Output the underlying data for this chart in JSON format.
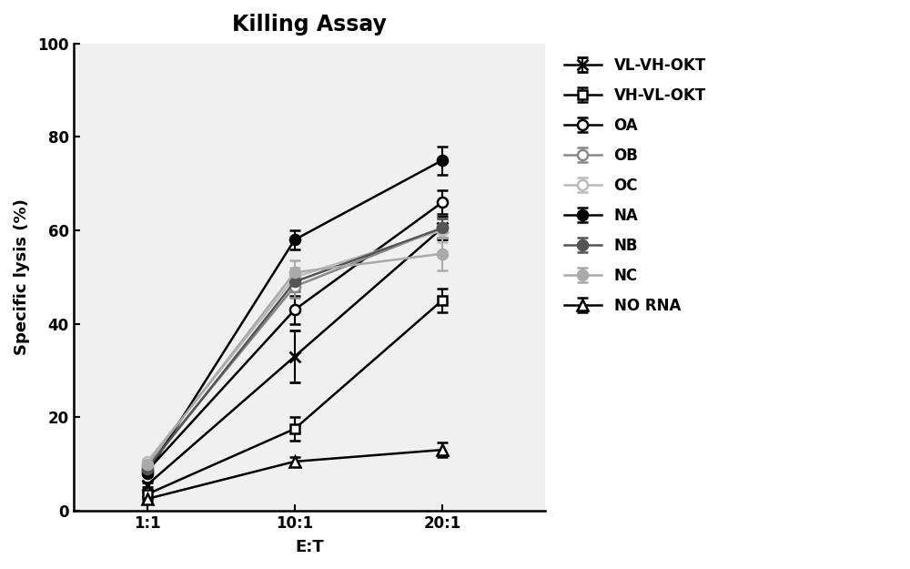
{
  "title": "Killing Assay",
  "xlabel": "E:T",
  "ylabel": "Specific lysis (%)",
  "xtick_labels": [
    "1:1",
    "10:1",
    "20:1"
  ],
  "xvals": [
    1,
    2,
    3
  ],
  "ylim": [
    0,
    100
  ],
  "yticks": [
    0,
    20,
    40,
    60,
    80,
    100
  ],
  "series": [
    {
      "label": "VL-VH-OKT",
      "color": "#000000",
      "marker": "x",
      "markersize": 9,
      "linewidth": 1.8,
      "markerfacecolor": "#000000",
      "markeredgewidth": 2.0,
      "values": [
        5.5,
        33.0,
        60.5
      ],
      "errors": [
        0.5,
        5.5,
        2.5
      ]
    },
    {
      "label": "VH-VL-OKT",
      "color": "#000000",
      "marker": "s",
      "markersize": 7,
      "linewidth": 1.8,
      "markerfacecolor": "white",
      "markeredgewidth": 1.8,
      "values": [
        3.5,
        17.5,
        45.0
      ],
      "errors": [
        0.5,
        2.5,
        2.5
      ]
    },
    {
      "label": "OA",
      "color": "#000000",
      "marker": "o",
      "markersize": 8,
      "linewidth": 1.8,
      "markerfacecolor": "white",
      "markeredgewidth": 1.8,
      "values": [
        8.5,
        43.0,
        66.0
      ],
      "errors": [
        0.5,
        3.0,
        2.5
      ]
    },
    {
      "label": "OB",
      "color": "#888888",
      "marker": "o",
      "markersize": 8,
      "linewidth": 1.8,
      "markerfacecolor": "white",
      "markeredgewidth": 1.8,
      "values": [
        9.5,
        48.0,
        60.5
      ],
      "errors": [
        0.5,
        2.5,
        2.0
      ]
    },
    {
      "label": "OC",
      "color": "#bbbbbb",
      "marker": "o",
      "markersize": 8,
      "linewidth": 1.8,
      "markerfacecolor": "white",
      "markeredgewidth": 1.8,
      "values": [
        10.5,
        50.0,
        60.0
      ],
      "errors": [
        0.5,
        2.0,
        2.5
      ]
    },
    {
      "label": "NA",
      "color": "#000000",
      "marker": "o",
      "markersize": 8,
      "linewidth": 1.8,
      "markerfacecolor": "#000000",
      "markeredgewidth": 1.8,
      "values": [
        8.0,
        58.0,
        75.0
      ],
      "errors": [
        0.5,
        2.0,
        3.0
      ]
    },
    {
      "label": "NB",
      "color": "#555555",
      "marker": "o",
      "markersize": 8,
      "linewidth": 1.8,
      "markerfacecolor": "#555555",
      "markeredgewidth": 1.8,
      "values": [
        9.0,
        49.0,
        60.5
      ],
      "errors": [
        0.5,
        2.0,
        2.0
      ]
    },
    {
      "label": "NC",
      "color": "#aaaaaa",
      "marker": "o",
      "markersize": 8,
      "linewidth": 1.8,
      "markerfacecolor": "#aaaaaa",
      "markeredgewidth": 1.8,
      "values": [
        10.0,
        51.0,
        55.0
      ],
      "errors": [
        0.5,
        2.5,
        3.5
      ]
    },
    {
      "label": "NO RNA",
      "color": "#000000",
      "marker": "^",
      "markersize": 8,
      "linewidth": 1.8,
      "markerfacecolor": "white",
      "markeredgewidth": 1.8,
      "values": [
        2.5,
        10.5,
        13.0
      ],
      "errors": [
        0.4,
        1.0,
        1.5
      ]
    }
  ],
  "background_color": "#ffffff",
  "plot_bg_color": "#f0f0f0",
  "title_fontsize": 17,
  "axis_label_fontsize": 13,
  "tick_fontsize": 12,
  "legend_fontsize": 12
}
